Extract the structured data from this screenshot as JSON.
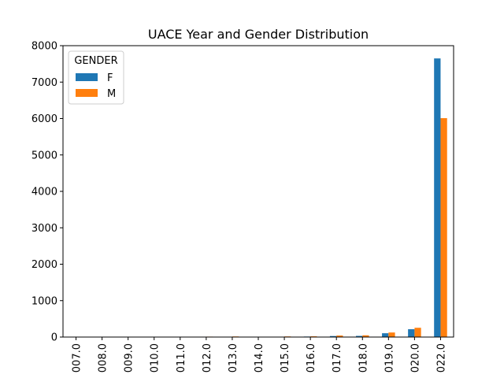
{
  "chart_data": {
    "type": "bar",
    "title": "UACE Year and Gender Distribution",
    "xlabel": "",
    "ylabel": "",
    "ylim": [
      0,
      8000
    ],
    "yticks": [
      0,
      1000,
      2000,
      3000,
      4000,
      5000,
      6000,
      7000,
      8000
    ],
    "categories": [
      "007.0",
      "008.0",
      "009.0",
      "010.0",
      "011.0",
      "012.0",
      "013.0",
      "014.0",
      "015.0",
      "016.0",
      "017.0",
      "018.0",
      "019.0",
      "020.0",
      "022.0"
    ],
    "series": [
      {
        "name": "F",
        "color": "#1f77b4",
        "values": [
          0,
          0,
          1,
          1,
          3,
          6,
          10,
          5,
          8,
          14,
          28,
          32,
          105,
          215,
          7650
        ]
      },
      {
        "name": "M",
        "color": "#ff7f0e",
        "values": [
          1,
          1,
          2,
          3,
          8,
          12,
          16,
          10,
          17,
          20,
          42,
          48,
          125,
          255,
          6010
        ]
      }
    ],
    "legend": {
      "title": "GENDER",
      "position": "top-left"
    },
    "grid": false
  }
}
